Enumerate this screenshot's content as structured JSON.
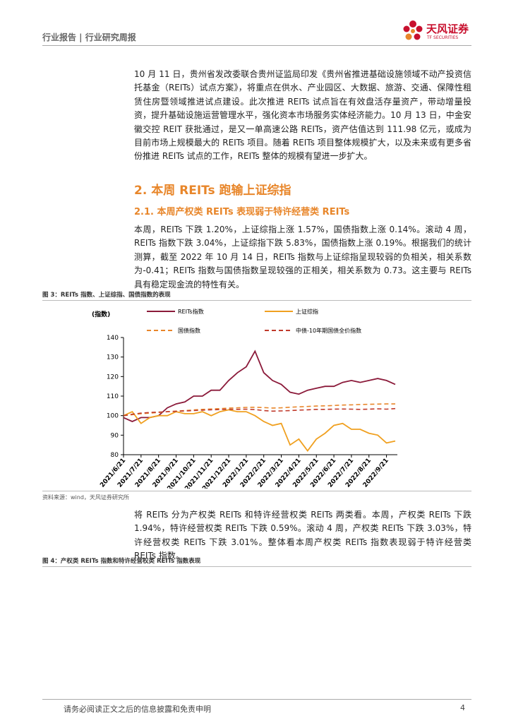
{
  "header": {
    "title": "行业报告 | 行业研究周报",
    "logo_name": "天风证券",
    "logo_sub": "TF SECURITIES"
  },
  "paragraphs": [
    "10 月 11 日，贵州省发改委联合贵州证监局印发《贵州省推进基础设施领域不动产投资信托基金（REITs）试点方案》，将重点在供水、产业园区、大数据、旅游、交通、保障性租赁住房暨领域推进试点建设。此次推进 REITs 试点旨在有效盘活存量资产，带动增量投资，提升基础设施运营管理水平，强化资本市场服务实体经济能力。10 月 13 日，中金安徽交控 REIT 获批通过，是又一单高速公路 REITs，资产估值达到 111.98 亿元，或成为目前市场上规模最大的 REITs 项目。随着 REITs 项目整体规模扩大，以及未来或有更多省份推进 REITs 试点的工作，REITs 整体的规模有望进一步扩大。",
    "本周，REITs 下跌 1.20%，上证综指上涨 1.57%，国债指数上涨 0.14%。滚动 4 周，REITs 指数下跌 3.04%，上证综指下跌 5.83%，国债指数上涨 0.19%。根据我们的统计测算，截至 2022 年 10 月 14 日，REITs 指数与上证综指呈现较弱的负相关，相关系数为-0.41；REITs 指数与国债指数呈现较强的正相关，相关系数为 0.73。这主要与 REITs 具有稳定现金流的特性有关。",
    "将 REITs 分为产权类 REITs 和特许经营权类 REITs 两类看。本周，产权类 REITs 下跌 1.94%，特许经营权类 REITs 下跌 0.59%。滚动 4 周，产权类 REITs 下跌 3.03%，特许经营权类 REITs 下跌 3.01%。整体看本周产权类 REITs 指数表现弱于特许经营类 REITs 指数。"
  ],
  "heading1": "2. 本周 REITs 跑输上证综指",
  "heading2": "2.1. 本周产权类 REITs 表现弱于特许经营类 REITs",
  "figure3_caption": "图 3：REITs 指数、上证综指、国债指数的表现",
  "figure3_source": "资料来源：wind，天风证券研究所",
  "figure4_caption": "图 4：产权类 REITs 指数和特许经营权类 REITs 指数表现",
  "footer": {
    "disclaimer": "请务必阅读正文之后的信息披露和免责申明",
    "page": "4"
  },
  "chart_data": {
    "type": "line",
    "ylabel": "(指数)",
    "categories": [
      "2021/6/21",
      null,
      "2021/7/21",
      null,
      "2021/8/21",
      null,
      "2021/9/21",
      null,
      "2021/10/21",
      null,
      "2021/11/21",
      null,
      "2021/12/21",
      null,
      "2022/1/21",
      null,
      "2022/2/21",
      null,
      "2022/3/21",
      null,
      "2022/4/21",
      null,
      "2022/5/21",
      null,
      "2022/6/21",
      null,
      "2022/7/21",
      null,
      "2022/8/21",
      null,
      "2022/9/21",
      null
    ],
    "ylim": [
      80,
      140
    ],
    "yticks": [
      80,
      90,
      100,
      110,
      120,
      130,
      140
    ],
    "series": [
      {
        "name": "REITs指数",
        "color": "#8b1a3a",
        "dashed": false,
        "values": [
          99,
          97,
          99,
          99,
          100,
          104,
          106,
          107,
          110,
          110,
          113,
          113,
          118,
          122,
          125,
          133,
          122,
          118,
          116,
          112,
          111,
          113,
          114,
          115,
          115,
          117,
          118,
          117,
          118,
          119,
          118,
          116
        ]
      },
      {
        "name": "上证综指",
        "color": "#f0a020",
        "dashed": false,
        "values": [
          100,
          102,
          96,
          99,
          100,
          100,
          102,
          101,
          101,
          102,
          100,
          102,
          103,
          102,
          102,
          100,
          97,
          95,
          96,
          85,
          88,
          82,
          88,
          91,
          95,
          96,
          93,
          93,
          91,
          90,
          86,
          87
        ]
      },
      {
        "name": "国债指数",
        "color": "#e8862a",
        "dashed": true,
        "values": [
          100,
          100.5,
          101,
          101.3,
          101.6,
          102,
          102.3,
          102.6,
          102.9,
          103.2,
          103.4,
          103.6,
          103.9,
          104,
          104.2,
          104.3,
          104.1,
          103.9,
          104,
          104.3,
          104.5,
          104.7,
          104.9,
          105,
          105.2,
          105.4,
          105.5,
          105.7,
          105.8,
          105.9,
          106,
          106
        ]
      },
      {
        "name": "中债-10年期国债全价指数",
        "color": "#c0392b",
        "dashed": true,
        "values": [
          100,
          100.7,
          101.3,
          101.6,
          101.8,
          102,
          102.2,
          102.4,
          102.6,
          102.8,
          103,
          103.1,
          103.3,
          103.2,
          103.3,
          103.1,
          102.6,
          102.3,
          102.4,
          102.6,
          102.8,
          103,
          103.2,
          103.2,
          103.3,
          103.4,
          103.3,
          103.2,
          103.3,
          103.5,
          103.3,
          103.6
        ]
      }
    ]
  }
}
